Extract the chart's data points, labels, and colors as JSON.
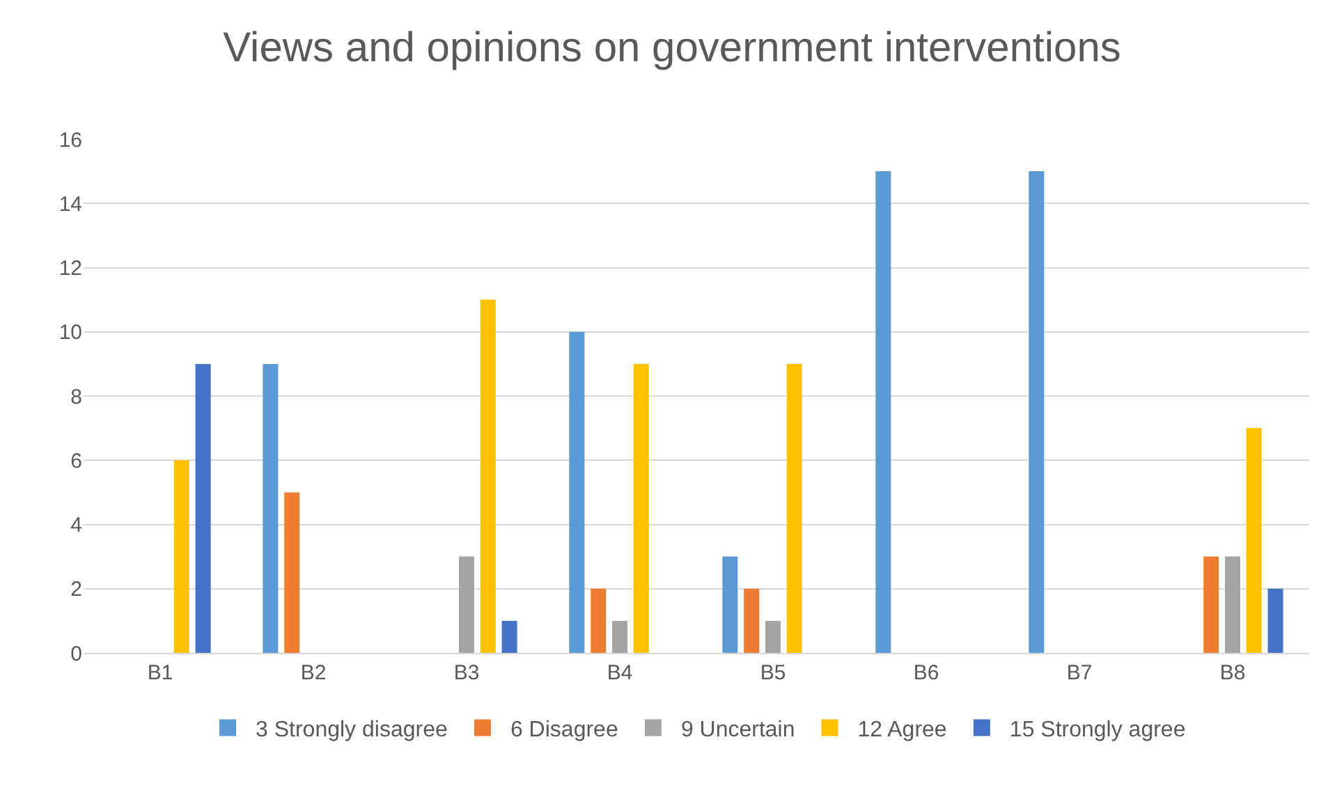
{
  "chart_data": {
    "type": "bar",
    "title": "Views and opinions on government interventions",
    "categories": [
      "B1",
      "B2",
      "B3",
      "B4",
      "B5",
      "B6",
      "B7",
      "B8"
    ],
    "series": [
      {
        "name": "3 Strongly disagree",
        "color": "#5b9bd5",
        "values": [
          0,
          9,
          0,
          10,
          3,
          15,
          15,
          0
        ]
      },
      {
        "name": "6 Disagree",
        "color": "#ed7d31",
        "values": [
          0,
          5,
          0,
          2,
          2,
          0,
          0,
          3
        ]
      },
      {
        "name": "9 Uncertain",
        "color": "#a5a5a5",
        "values": [
          0,
          0,
          3,
          1,
          1,
          0,
          0,
          3
        ]
      },
      {
        "name": "12 Agree",
        "color": "#ffc000",
        "values": [
          6,
          0,
          11,
          9,
          9,
          0,
          0,
          7
        ]
      },
      {
        "name": "15 Strongly agree",
        "color": "#4472c4",
        "values": [
          9,
          0,
          1,
          0,
          0,
          0,
          0,
          2
        ]
      }
    ],
    "ylim": [
      0,
      16
    ],
    "yticks": [
      0,
      2,
      4,
      6,
      8,
      10,
      12,
      14,
      16
    ],
    "grid": "y",
    "legend": "bottom"
  }
}
